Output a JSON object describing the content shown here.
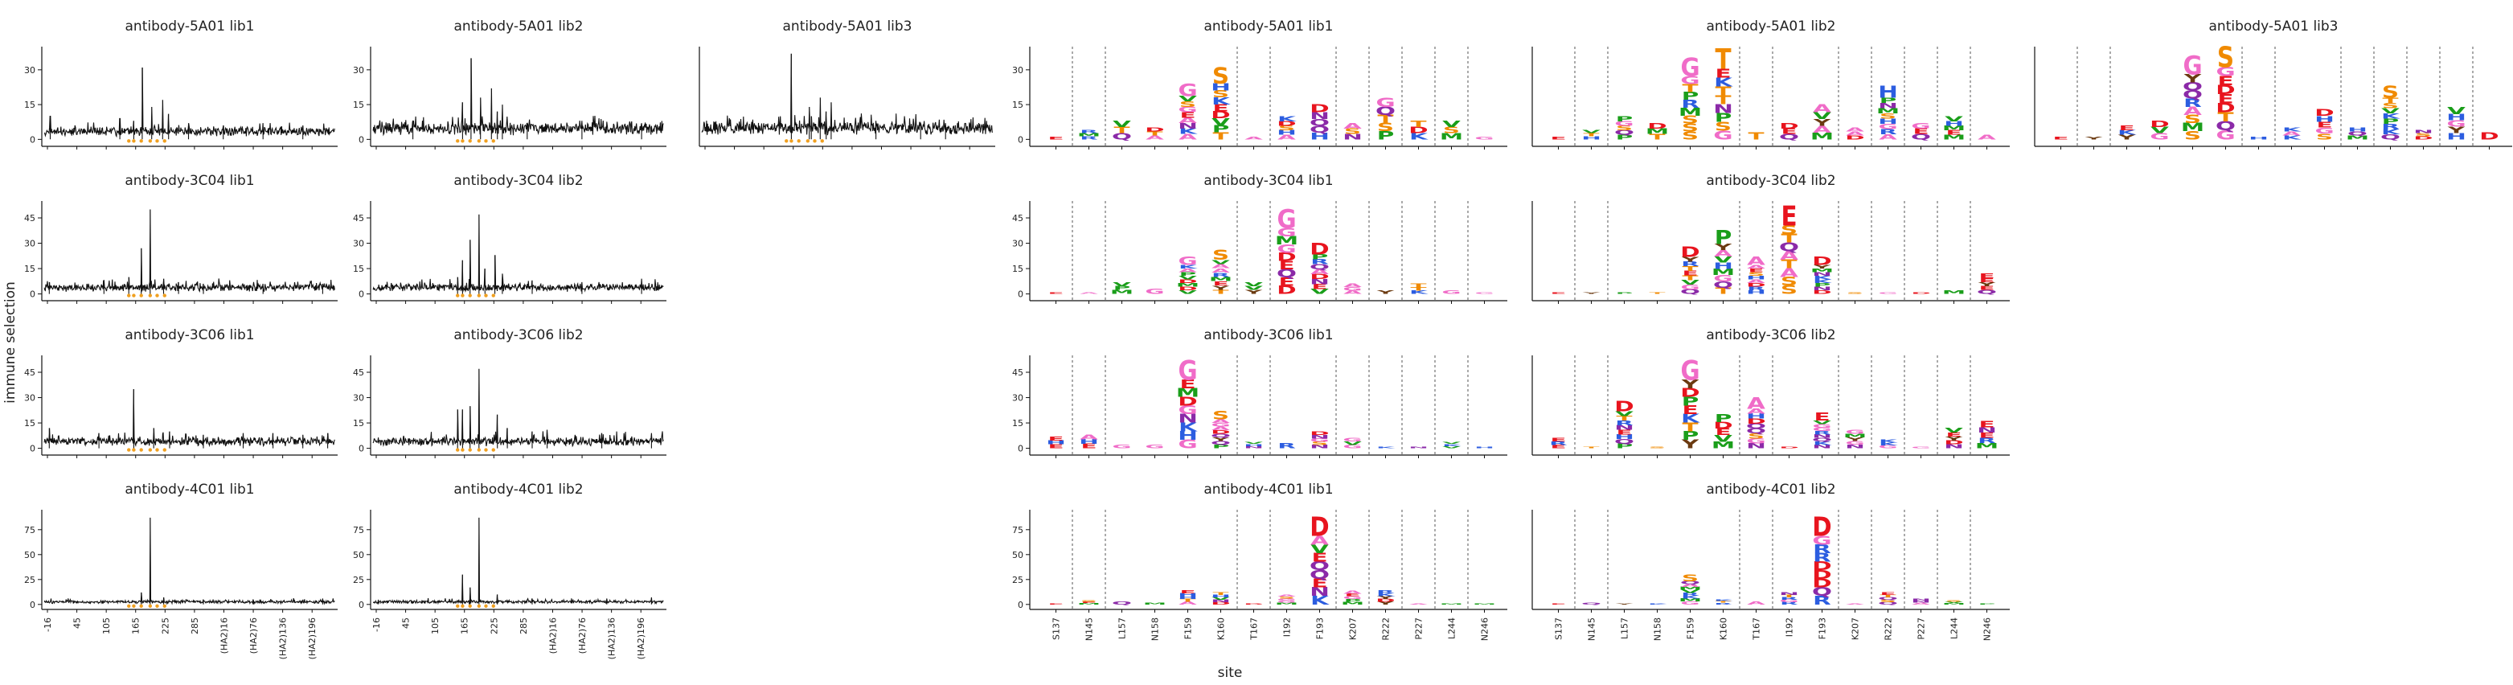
{
  "figure": {
    "ylabel": "immune selection",
    "xlabel": "site"
  },
  "chart_data": [
    {
      "type": "line",
      "panel": "line",
      "title": "antibody-5A01 lib1",
      "ylim": [
        -3,
        40
      ],
      "yticks": [
        0,
        15,
        30
      ],
      "xlim": [
        -25,
        570
      ],
      "xticks": [
        "-16",
        "45",
        "105",
        "165",
        "225",
        "285",
        "(HA2)16",
        "(HA2)76",
        "(HA2)136",
        "(HA2)196"
      ],
      "show_xticks": false,
      "peaks": [
        [
          177,
          31
        ],
        [
          218,
          17
        ],
        [
          196,
          14
        ],
        [
          -8,
          10
        ],
        [
          230,
          11
        ],
        [
          132,
          9
        ],
        [
          270,
          7
        ],
        [
          160,
          8
        ],
        [
          340,
          6
        ],
        [
          420,
          7
        ],
        [
          500,
          6
        ]
      ],
      "baseline": 3,
      "noise": 3,
      "seed": 11
    },
    {
      "type": "line",
      "panel": "line",
      "title": "antibody-5A01 lib2",
      "ylim": [
        -3,
        40
      ],
      "yticks": [
        0,
        15,
        30
      ],
      "xlim": [
        -25,
        570
      ],
      "show_xticks": false,
      "peaks": [
        [
          177,
          35
        ],
        [
          218,
          22
        ],
        [
          196,
          18
        ],
        [
          160,
          16
        ],
        [
          240,
          15
        ],
        [
          230,
          12
        ],
        [
          60,
          8
        ],
        [
          290,
          7
        ],
        [
          400,
          8
        ],
        [
          520,
          7
        ]
      ],
      "baseline": 4,
      "noise": 4,
      "seed": 23
    },
    {
      "type": "line",
      "panel": "line",
      "title": "antibody-5A01 lib3",
      "ylim": [
        -3,
        40
      ],
      "yticks": [],
      "xlim": [
        -25,
        570
      ],
      "show_xticks": false,
      "peaks": [
        [
          160,
          37
        ],
        [
          218,
          18
        ],
        [
          196,
          14
        ],
        [
          240,
          16
        ],
        [
          230,
          12
        ],
        [
          200,
          10
        ],
        [
          330,
          8
        ],
        [
          420,
          7
        ],
        [
          470,
          7
        ]
      ],
      "baseline": 4,
      "noise": 5,
      "seed": 37
    },
    {
      "type": "line",
      "panel": "line",
      "title": "antibody-3C04 lib1",
      "ylim": [
        -4,
        55
      ],
      "yticks": [
        0,
        15,
        30,
        45
      ],
      "xlim": [
        -25,
        570
      ],
      "show_xticks": false,
      "peaks": [
        [
          193,
          50
        ],
        [
          175,
          27
        ],
        [
          150,
          10
        ],
        [
          220,
          9
        ],
        [
          100,
          8
        ],
        [
          -10,
          7
        ],
        [
          250,
          7
        ],
        [
          300,
          6
        ],
        [
          420,
          6
        ],
        [
          540,
          6
        ]
      ],
      "baseline": 3,
      "noise": 4,
      "seed": 41
    },
    {
      "type": "line",
      "panel": "line",
      "title": "antibody-3C04 lib2",
      "ylim": [
        -4,
        55
      ],
      "yticks": [
        0,
        15,
        30,
        45
      ],
      "xlim": [
        -25,
        570
      ],
      "show_xticks": false,
      "peaks": [
        [
          193,
          47
        ],
        [
          175,
          32
        ],
        [
          225,
          23
        ],
        [
          160,
          20
        ],
        [
          205,
          15
        ],
        [
          240,
          12
        ],
        [
          150,
          10
        ],
        [
          300,
          8
        ],
        [
          400,
          7
        ],
        [
          520,
          9
        ]
      ],
      "baseline": 3,
      "noise": 4,
      "seed": 53
    },
    {
      "type": "line",
      "panel": "line",
      "title": "antibody-3C06 lib1",
      "ylim": [
        -4,
        55
      ],
      "yticks": [
        0,
        15,
        30,
        45
      ],
      "xlim": [
        -25,
        570
      ],
      "show_xticks": false,
      "peaks": [
        [
          160,
          35
        ],
        [
          -10,
          12
        ],
        [
          90,
          9
        ],
        [
          200,
          12
        ],
        [
          232,
          10
        ],
        [
          300,
          8
        ],
        [
          380,
          9
        ],
        [
          440,
          9
        ],
        [
          500,
          8
        ],
        [
          550,
          9
        ]
      ],
      "baseline": 3,
      "noise": 5,
      "seed": 61
    },
    {
      "type": "line",
      "panel": "line",
      "title": "antibody-3C06 lib2",
      "ylim": [
        -4,
        55
      ],
      "yticks": [
        0,
        15,
        30,
        45
      ],
      "xlim": [
        -25,
        570
      ],
      "show_xticks": false,
      "peaks": [
        [
          193,
          47
        ],
        [
          160,
          23
        ],
        [
          150,
          23
        ],
        [
          175,
          25
        ],
        [
          230,
          20
        ],
        [
          250,
          12
        ],
        [
          300,
          10
        ],
        [
          330,
          11
        ],
        [
          440,
          9
        ],
        [
          540,
          9
        ]
      ],
      "baseline": 3,
      "noise": 5,
      "seed": 71
    },
    {
      "type": "line",
      "panel": "line",
      "title": "antibody-4C01 lib1",
      "ylim": [
        -5,
        95
      ],
      "yticks": [
        0,
        25,
        50,
        75
      ],
      "xlim": [
        -25,
        570
      ],
      "xticks": [
        "-16",
        "45",
        "105",
        "165",
        "225",
        "285",
        "(HA2)16",
        "(HA2)76",
        "(HA2)136",
        "(HA2)196"
      ],
      "show_xticks": true,
      "peaks": [
        [
          193,
          87
        ],
        [
          175,
          12
        ],
        [
          220,
          7
        ],
        [
          300,
          5
        ],
        [
          400,
          5
        ],
        [
          540,
          6
        ]
      ],
      "baseline": 2,
      "noise": 3,
      "seed": 83
    },
    {
      "type": "line",
      "panel": "line",
      "title": "antibody-4C01 lib2",
      "ylim": [
        -5,
        95
      ],
      "yticks": [
        0,
        25,
        50,
        75
      ],
      "xlim": [
        -25,
        570
      ],
      "xticks": [
        "-16",
        "45",
        "105",
        "165",
        "225",
        "285",
        "(HA2)16",
        "(HA2)76",
        "(HA2)136",
        "(HA2)196"
      ],
      "show_xticks": true,
      "peaks": [
        [
          193,
          87
        ],
        [
          160,
          30
        ],
        [
          175,
          17
        ],
        [
          230,
          10
        ],
        [
          300,
          6
        ],
        [
          450,
          6
        ],
        [
          540,
          7
        ]
      ],
      "baseline": 2,
      "noise": 3,
      "seed": 97
    },
    {
      "type": "bar",
      "panel": "logo",
      "title": "antibody-5A01 lib1",
      "ylim": [
        -3,
        40
      ],
      "yticks": [
        0,
        15,
        30
      ],
      "sites": [
        "S137",
        "N145",
        "L157",
        "N158",
        "F159",
        "K160",
        "T167",
        "I192",
        "F193",
        "K207",
        "R222",
        "P227",
        "L244",
        "N246"
      ],
      "show_xticks": false,
      "heights": [
        1,
        4,
        8,
        5,
        24,
        31,
        1,
        10,
        15,
        7,
        18,
        8,
        8,
        1
      ],
      "letters": [
        "",
        "",
        "V",
        "D",
        "G",
        "S",
        "",
        "K",
        "D",
        "A",
        "G",
        "T",
        "V",
        ""
      ],
      "seed": 101
    },
    {
      "type": "bar",
      "panel": "logo",
      "title": "antibody-5A01 lib2",
      "ylim": [
        -3,
        40
      ],
      "yticks": [],
      "sites": [
        "S137",
        "N145",
        "L157",
        "N158",
        "F159",
        "K160",
        "T167",
        "I192",
        "F193",
        "K207",
        "R222",
        "P227",
        "L244",
        "N246"
      ],
      "show_xticks": false,
      "heights": [
        1,
        4,
        10,
        7,
        35,
        39,
        3,
        7,
        15,
        5,
        23,
        7,
        10,
        2
      ],
      "letters": [
        "",
        "V",
        "P",
        "D",
        "G",
        "T",
        "",
        "D",
        "A",
        "",
        "H",
        "",
        "V",
        ""
      ],
      "seed": 113
    },
    {
      "type": "bar",
      "panel": "logo",
      "title": "antibody-5A01 lib3",
      "ylim": [
        -3,
        40
      ],
      "yticks": [],
      "sites": [
        "S137",
        "N145",
        "L157",
        "N158",
        "F159",
        "K160",
        "T167",
        "I192",
        "F193",
        "K207",
        "R222",
        "P227",
        "L244",
        "N246"
      ],
      "show_xticks": false,
      "heights": [
        1,
        1,
        6,
        8,
        36,
        40,
        1,
        5,
        13,
        5,
        23,
        4,
        14,
        3
      ],
      "letters": [
        "",
        "",
        "E",
        "D",
        "G",
        "S",
        "",
        "",
        "D",
        "H",
        "S",
        "",
        "V",
        "D"
      ],
      "seed": 127
    },
    {
      "type": "bar",
      "panel": "logo",
      "title": "antibody-3C04 lib1",
      "ylim": [
        -4,
        55
      ],
      "yticks": [
        0,
        15,
        30,
        45
      ],
      "sites": [
        "S137",
        "N145",
        "L157",
        "N158",
        "F159",
        "K160",
        "T167",
        "I192",
        "F193",
        "K207",
        "R222",
        "P227",
        "L244",
        "N246"
      ],
      "show_xticks": false,
      "heights": [
        1,
        1,
        7,
        3,
        22,
        26,
        7,
        50,
        30,
        6,
        2,
        6,
        2,
        1
      ],
      "letters": [
        "",
        "",
        "V",
        "",
        "G",
        "S",
        "V",
        "G",
        "D",
        "A",
        "",
        "T",
        "",
        ""
      ],
      "seed": 139
    },
    {
      "type": "bar",
      "panel": "logo",
      "title": "antibody-3C04 lib2",
      "ylim": [
        -4,
        55
      ],
      "yticks": [],
      "sites": [
        "S137",
        "N145",
        "L157",
        "N158",
        "F159",
        "K160",
        "T167",
        "I192",
        "F193",
        "K207",
        "R222",
        "P227",
        "L244",
        "N246"
      ],
      "show_xticks": false,
      "heights": [
        1,
        1,
        1,
        1,
        28,
        38,
        22,
        52,
        22,
        1,
        1,
        1,
        2,
        12
      ],
      "letters": [
        "",
        "",
        "",
        "",
        "D",
        "P",
        "A",
        "E",
        "D",
        "",
        "",
        "",
        "",
        "E"
      ],
      "seed": 149
    },
    {
      "type": "bar",
      "panel": "logo",
      "title": "antibody-3C06 lib1",
      "ylim": [
        -4,
        55
      ],
      "yticks": [
        0,
        15,
        30,
        45
      ],
      "sites": [
        "S137",
        "N145",
        "L157",
        "N158",
        "F159",
        "K160",
        "T167",
        "I192",
        "F193",
        "K207",
        "R222",
        "P227",
        "L244",
        "N246"
      ],
      "show_xticks": false,
      "heights": [
        7,
        8,
        2,
        2,
        52,
        22,
        4,
        3,
        10,
        6,
        1,
        1,
        4,
        1
      ],
      "letters": [
        "E",
        "A",
        "",
        "",
        "G",
        "S",
        "V",
        "",
        "D",
        "G",
        "",
        "",
        "V",
        ""
      ],
      "seed": 157
    },
    {
      "type": "bar",
      "panel": "logo",
      "title": "antibody-3C06 lib2",
      "ylim": [
        -4,
        55
      ],
      "yticks": [],
      "sites": [
        "S137",
        "N145",
        "L157",
        "N158",
        "F159",
        "K160",
        "T167",
        "I192",
        "F193",
        "K207",
        "R222",
        "P227",
        "L244",
        "N246"
      ],
      "show_xticks": false,
      "heights": [
        6,
        1,
        28,
        1,
        52,
        20,
        30,
        1,
        21,
        11,
        5,
        1,
        12,
        16
      ],
      "letters": [
        "E",
        "",
        "D",
        "",
        "G",
        "P",
        "A",
        "",
        "E",
        "G",
        "",
        "",
        "V",
        "E"
      ],
      "seed": 167
    },
    {
      "type": "bar",
      "panel": "logo",
      "title": "antibody-4C01 lib1",
      "ylim": [
        -5,
        95
      ],
      "yticks": [
        0,
        25,
        50,
        75
      ],
      "sites": [
        "S137",
        "N145",
        "L157",
        "N158",
        "F159",
        "K160",
        "T167",
        "I192",
        "F193",
        "K207",
        "R222",
        "P227",
        "L244",
        "N246"
      ],
      "show_xticks": true,
      "heights": [
        1,
        4,
        3,
        2,
        14,
        12,
        1,
        10,
        88,
        14,
        14,
        1,
        1,
        1
      ],
      "letters": [
        "",
        "",
        "",
        "",
        "",
        "",
        "",
        "",
        "D",
        "A",
        "",
        "",
        "",
        ""
      ],
      "seed": 173
    },
    {
      "type": "bar",
      "panel": "logo",
      "title": "antibody-4C01 lib2",
      "ylim": [
        -5,
        95
      ],
      "yticks": [],
      "sites": [
        "S137",
        "N145",
        "L157",
        "N158",
        "F159",
        "K160",
        "T167",
        "I192",
        "F193",
        "K207",
        "R222",
        "P227",
        "L244",
        "N246"
      ],
      "show_xticks": true,
      "heights": [
        1,
        2,
        1,
        1,
        30,
        5,
        3,
        12,
        88,
        1,
        12,
        6,
        4,
        1
      ],
      "letters": [
        "",
        "",
        "",
        "",
        "S",
        "",
        "",
        "",
        "D",
        "",
        "E",
        "",
        "",
        ""
      ],
      "seed": 181
    }
  ]
}
